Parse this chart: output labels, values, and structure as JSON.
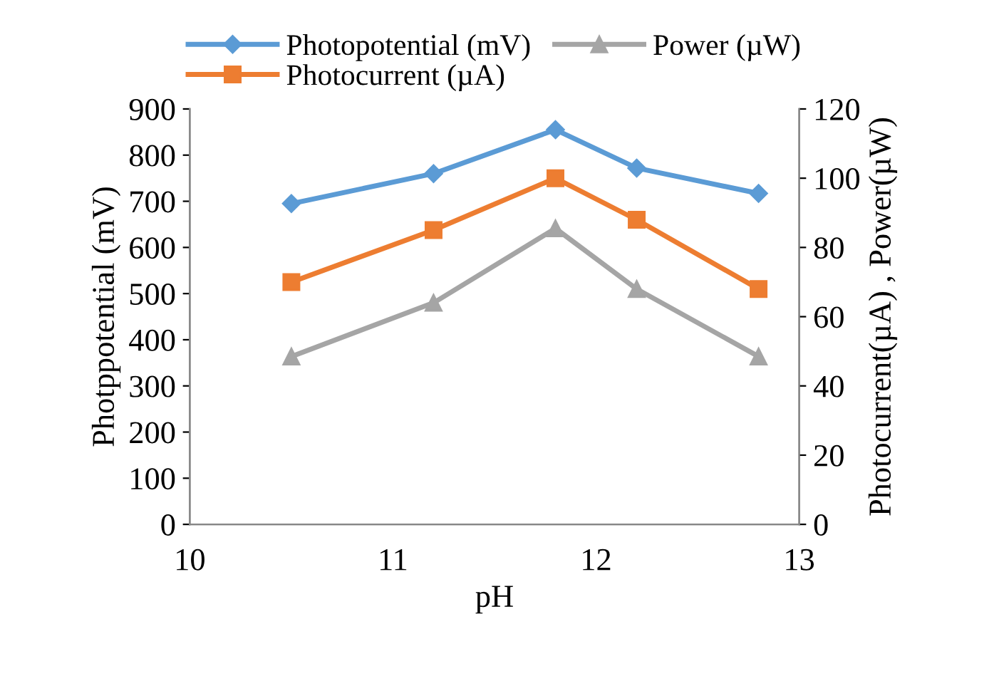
{
  "chart_data": {
    "type": "line",
    "xlabel": "pH",
    "ylabel": "Photppotential (mV)",
    "y2label": "Photocurrent(µA) , Power(µW)",
    "x": [
      10.5,
      11.2,
      11.8,
      12.2,
      12.8
    ],
    "series": [
      {
        "name": "Photopotential (mV)",
        "color": "#5b9bd5",
        "values": [
          695,
          760,
          855,
          772,
          717
        ],
        "marker": "diamond"
      },
      {
        "name": "Photocurrent (µA)",
        "color": "#ed7d31",
        "values": [
          70,
          85,
          100,
          88,
          68
        ],
        "axis": "y2",
        "marker": "square"
      },
      {
        "name": "Power (µW)",
        "color": "#a5a5a5",
        "values": [
          48.5,
          64,
          85.5,
          68,
          48.5
        ],
        "axis": "y2",
        "marker": "triangle"
      }
    ],
    "xlim": [
      10,
      13
    ],
    "xticks": [
      10,
      11,
      12,
      13
    ],
    "ylim": [
      0,
      900
    ],
    "yticks": [
      0,
      100,
      200,
      300,
      400,
      500,
      600,
      700,
      800,
      900
    ],
    "y2lim": [
      0,
      120
    ],
    "y2ticks": [
      0,
      20,
      40,
      60,
      80,
      100,
      120
    ],
    "grid": false,
    "legend": "top",
    "line_style": "solid"
  }
}
